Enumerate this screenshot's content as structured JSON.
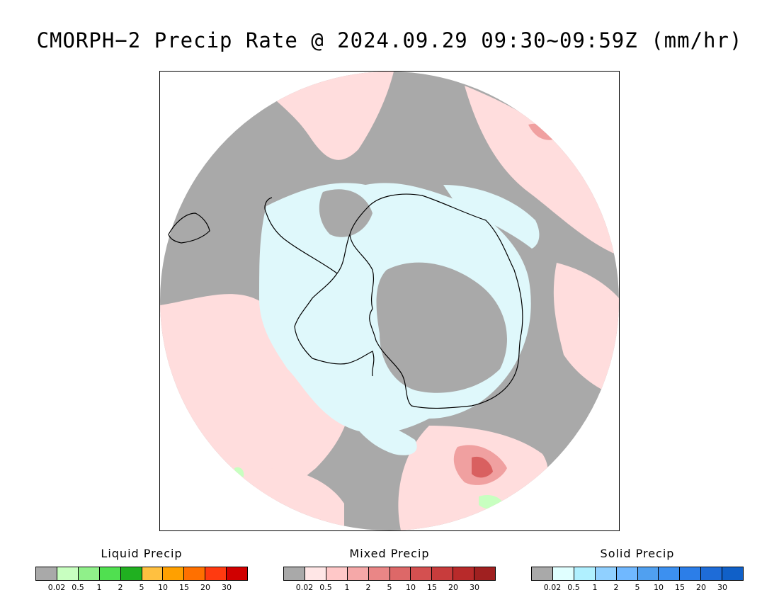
{
  "title": "CMORPH−2 Precip Rate @ 2024.09.29 09:30~09:59Z (mm/hr)",
  "map": {
    "projection": "south-polar-stereographic",
    "colors": {
      "no_precip": "#a9a9a9",
      "mixed_light": "#ffdddd",
      "mixed_moderate": "#f0a0a0",
      "mixed_heavy": "#d96060",
      "solid_light": "#dff8fb",
      "liquid_light": "#c8ffc0",
      "coastline": "#000000"
    }
  },
  "legends": [
    {
      "title": "Liquid Precip",
      "colors": [
        "#a9a9a9",
        "#c8ffc0",
        "#90f08a",
        "#50e050",
        "#20b020",
        "#ffc040",
        "#ffa000",
        "#ff7000",
        "#ff3a10",
        "#d00000"
      ],
      "ticks": [
        "0.02",
        "0.5",
        "1",
        "2",
        "5",
        "10",
        "15",
        "20",
        "30"
      ]
    },
    {
      "title": "Mixed Precip",
      "colors": [
        "#a9a9a9",
        "#ffe6e6",
        "#ffc8c8",
        "#f5a8a8",
        "#ea8686",
        "#dd6868",
        "#d45050",
        "#c83c3c",
        "#b82a2a",
        "#a02020"
      ],
      "ticks": [
        "0.02",
        "0.5",
        "1",
        "2",
        "5",
        "10",
        "15",
        "20",
        "30"
      ]
    },
    {
      "title": "Solid Precip",
      "colors": [
        "#a9a9a9",
        "#e0ffff",
        "#b0f0ff",
        "#90d0ff",
        "#70b8ff",
        "#50a0f0",
        "#3c90f0",
        "#2c7ee8",
        "#1e6cd8",
        "#1060c8"
      ],
      "ticks": [
        "0.02",
        "0.5",
        "1",
        "2",
        "5",
        "10",
        "15",
        "20",
        "30"
      ]
    }
  ]
}
